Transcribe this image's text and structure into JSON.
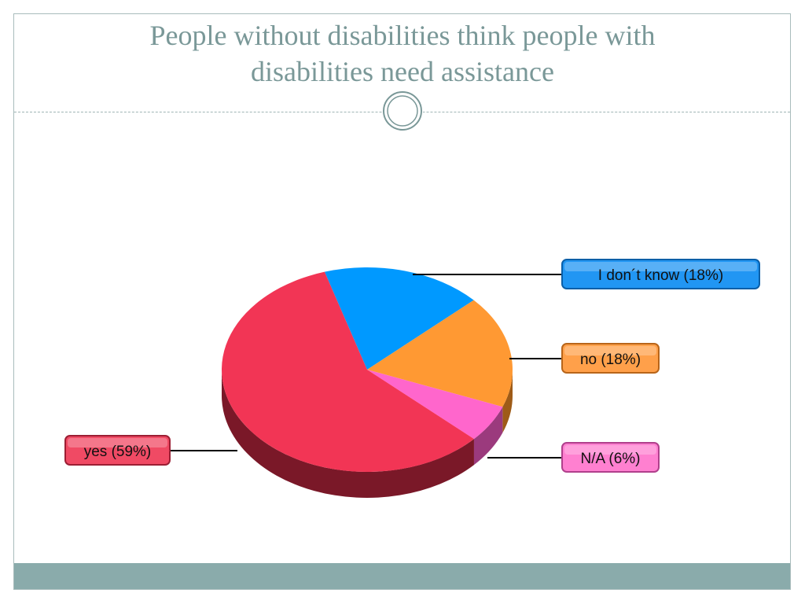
{
  "slide": {
    "title_line1": "People without disabilities think people with",
    "title_line2": "disabilities need assistance"
  },
  "chart_data": {
    "type": "pie",
    "title": "People without disabilities think people with disabilities need assistance",
    "slices": [
      {
        "key": "i_dont_know",
        "label": "I don´t know (18%)",
        "value": 18,
        "color": "#0099ff",
        "side_color": "#005f9e"
      },
      {
        "key": "no",
        "label": "no (18%)",
        "value": 18,
        "color": "#ff9933",
        "side_color": "#9e5b17"
      },
      {
        "key": "na",
        "label": "N/A (6%)",
        "value": 6,
        "color": "#ff66cc",
        "side_color": "#9b3a7d"
      },
      {
        "key": "yes",
        "label": "yes (59%)",
        "value": 59,
        "color": "#f23555",
        "side_color": "#7a1828"
      }
    ],
    "legend": "callout labels beside slices",
    "label_colors": {
      "i_dont_know": {
        "fill": "#2196f3",
        "border": "#0b5fa8"
      },
      "no": {
        "fill": "#ffa04a",
        "border": "#b8651a"
      },
      "na": {
        "fill": "#ff80d0",
        "border": "#b0408c"
      },
      "yes": {
        "fill": "#f04a64",
        "border": "#9c1f34"
      }
    }
  }
}
